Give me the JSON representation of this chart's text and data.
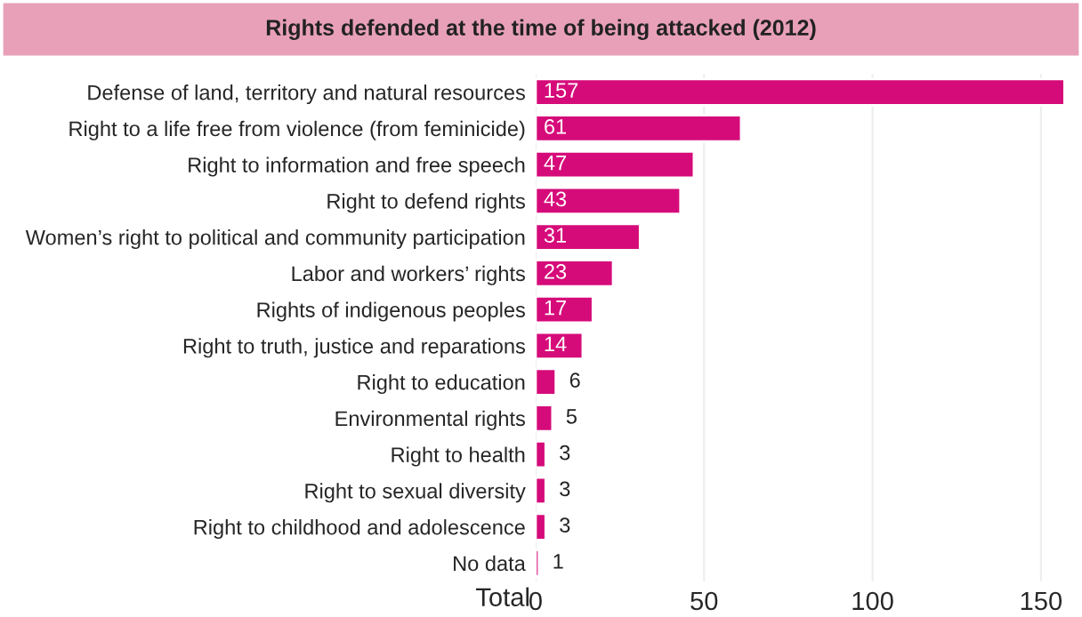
{
  "chart_data": {
    "type": "bar",
    "orientation": "horizontal",
    "title": "Rights defended at the time of being attacked (2012)",
    "xlabel": "Total",
    "categories": [
      "Defense of land, territory and natural resources",
      "Right to a life free from violence (from feminicide)",
      "Right to information and free speech",
      "Right to defend rights",
      "Women’s right to political and community participation",
      "Labor and workers’ rights",
      "Rights of indigenous peoples",
      "Right to truth, justice and reparations",
      "Right to education",
      "Environmental rights",
      "Right to health",
      "Right to sexual diversity",
      "Right to childhood and adolescence",
      "No data"
    ],
    "values": [
      157,
      61,
      47,
      43,
      31,
      23,
      17,
      14,
      6,
      5,
      3,
      3,
      3,
      1
    ],
    "color": "#d60b7a",
    "xlim": [
      0,
      158
    ],
    "xticks": [
      0,
      50,
      100,
      150
    ],
    "grid": "x",
    "data_labels": true
  }
}
